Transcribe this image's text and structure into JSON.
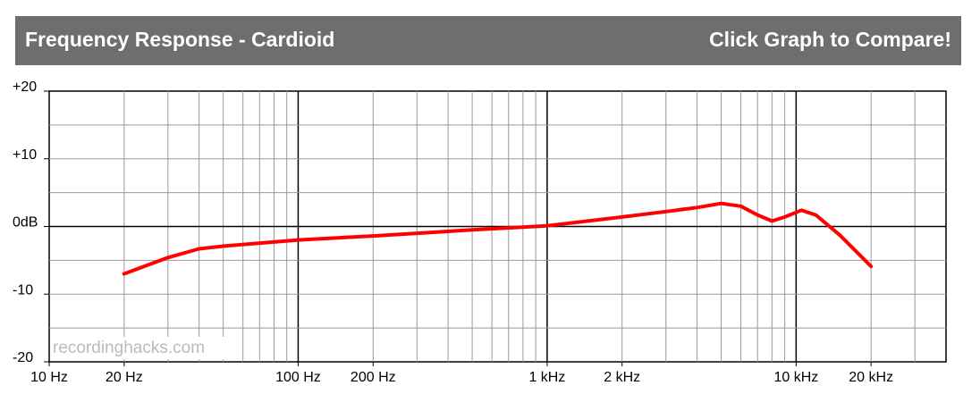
{
  "header": {
    "title": "Frequency Response - Cardioid",
    "action": "Click Graph to Compare!"
  },
  "chart_data": {
    "type": "line",
    "watermark": "recordinghacks.com",
    "xscale": "log",
    "color": "#ff0000",
    "x": [
      20,
      30,
      40,
      50,
      100,
      200,
      500,
      1000,
      2000,
      3000,
      4000,
      5000,
      6000,
      7000,
      8000,
      9000,
      10500,
      12000,
      15000,
      20000
    ],
    "values": [
      -7.0,
      -4.6,
      -3.3,
      -2.9,
      -2.0,
      -1.4,
      -0.5,
      0.1,
      1.4,
      2.2,
      2.8,
      3.4,
      3.0,
      1.7,
      0.8,
      1.4,
      2.4,
      1.7,
      -1.3,
      -5.9
    ],
    "xlim": [
      10,
      40000
    ],
    "ylim": [
      -20,
      20
    ],
    "xticks": [
      {
        "value": 10,
        "label": "10 Hz"
      },
      {
        "value": 20,
        "label": "20 Hz"
      },
      {
        "value": 100,
        "label": "100 Hz"
      },
      {
        "value": 200,
        "label": "200 Hz"
      },
      {
        "value": 1000,
        "label": "1 kHz"
      },
      {
        "value": 2000,
        "label": "2 kHz"
      },
      {
        "value": 10000,
        "label": "10 kHz"
      },
      {
        "value": 20000,
        "label": "20 kHz"
      }
    ],
    "xgrid": [
      20,
      30,
      40,
      50,
      60,
      70,
      80,
      90,
      100,
      200,
      300,
      400,
      500,
      600,
      700,
      800,
      900,
      1000,
      2000,
      3000,
      4000,
      5000,
      6000,
      7000,
      8000,
      9000,
      10000,
      20000,
      30000
    ],
    "xmajor": [
      100,
      1000,
      10000
    ],
    "yticks": [
      {
        "value": 20,
        "label": "+20"
      },
      {
        "value": 10,
        "label": "+10"
      },
      {
        "value": 0,
        "label": "0dB"
      },
      -10,
      -20
    ],
    "ygrid": [
      15,
      10,
      5,
      0,
      -5,
      -10,
      -15
    ],
    "ymajor": [
      0
    ]
  }
}
